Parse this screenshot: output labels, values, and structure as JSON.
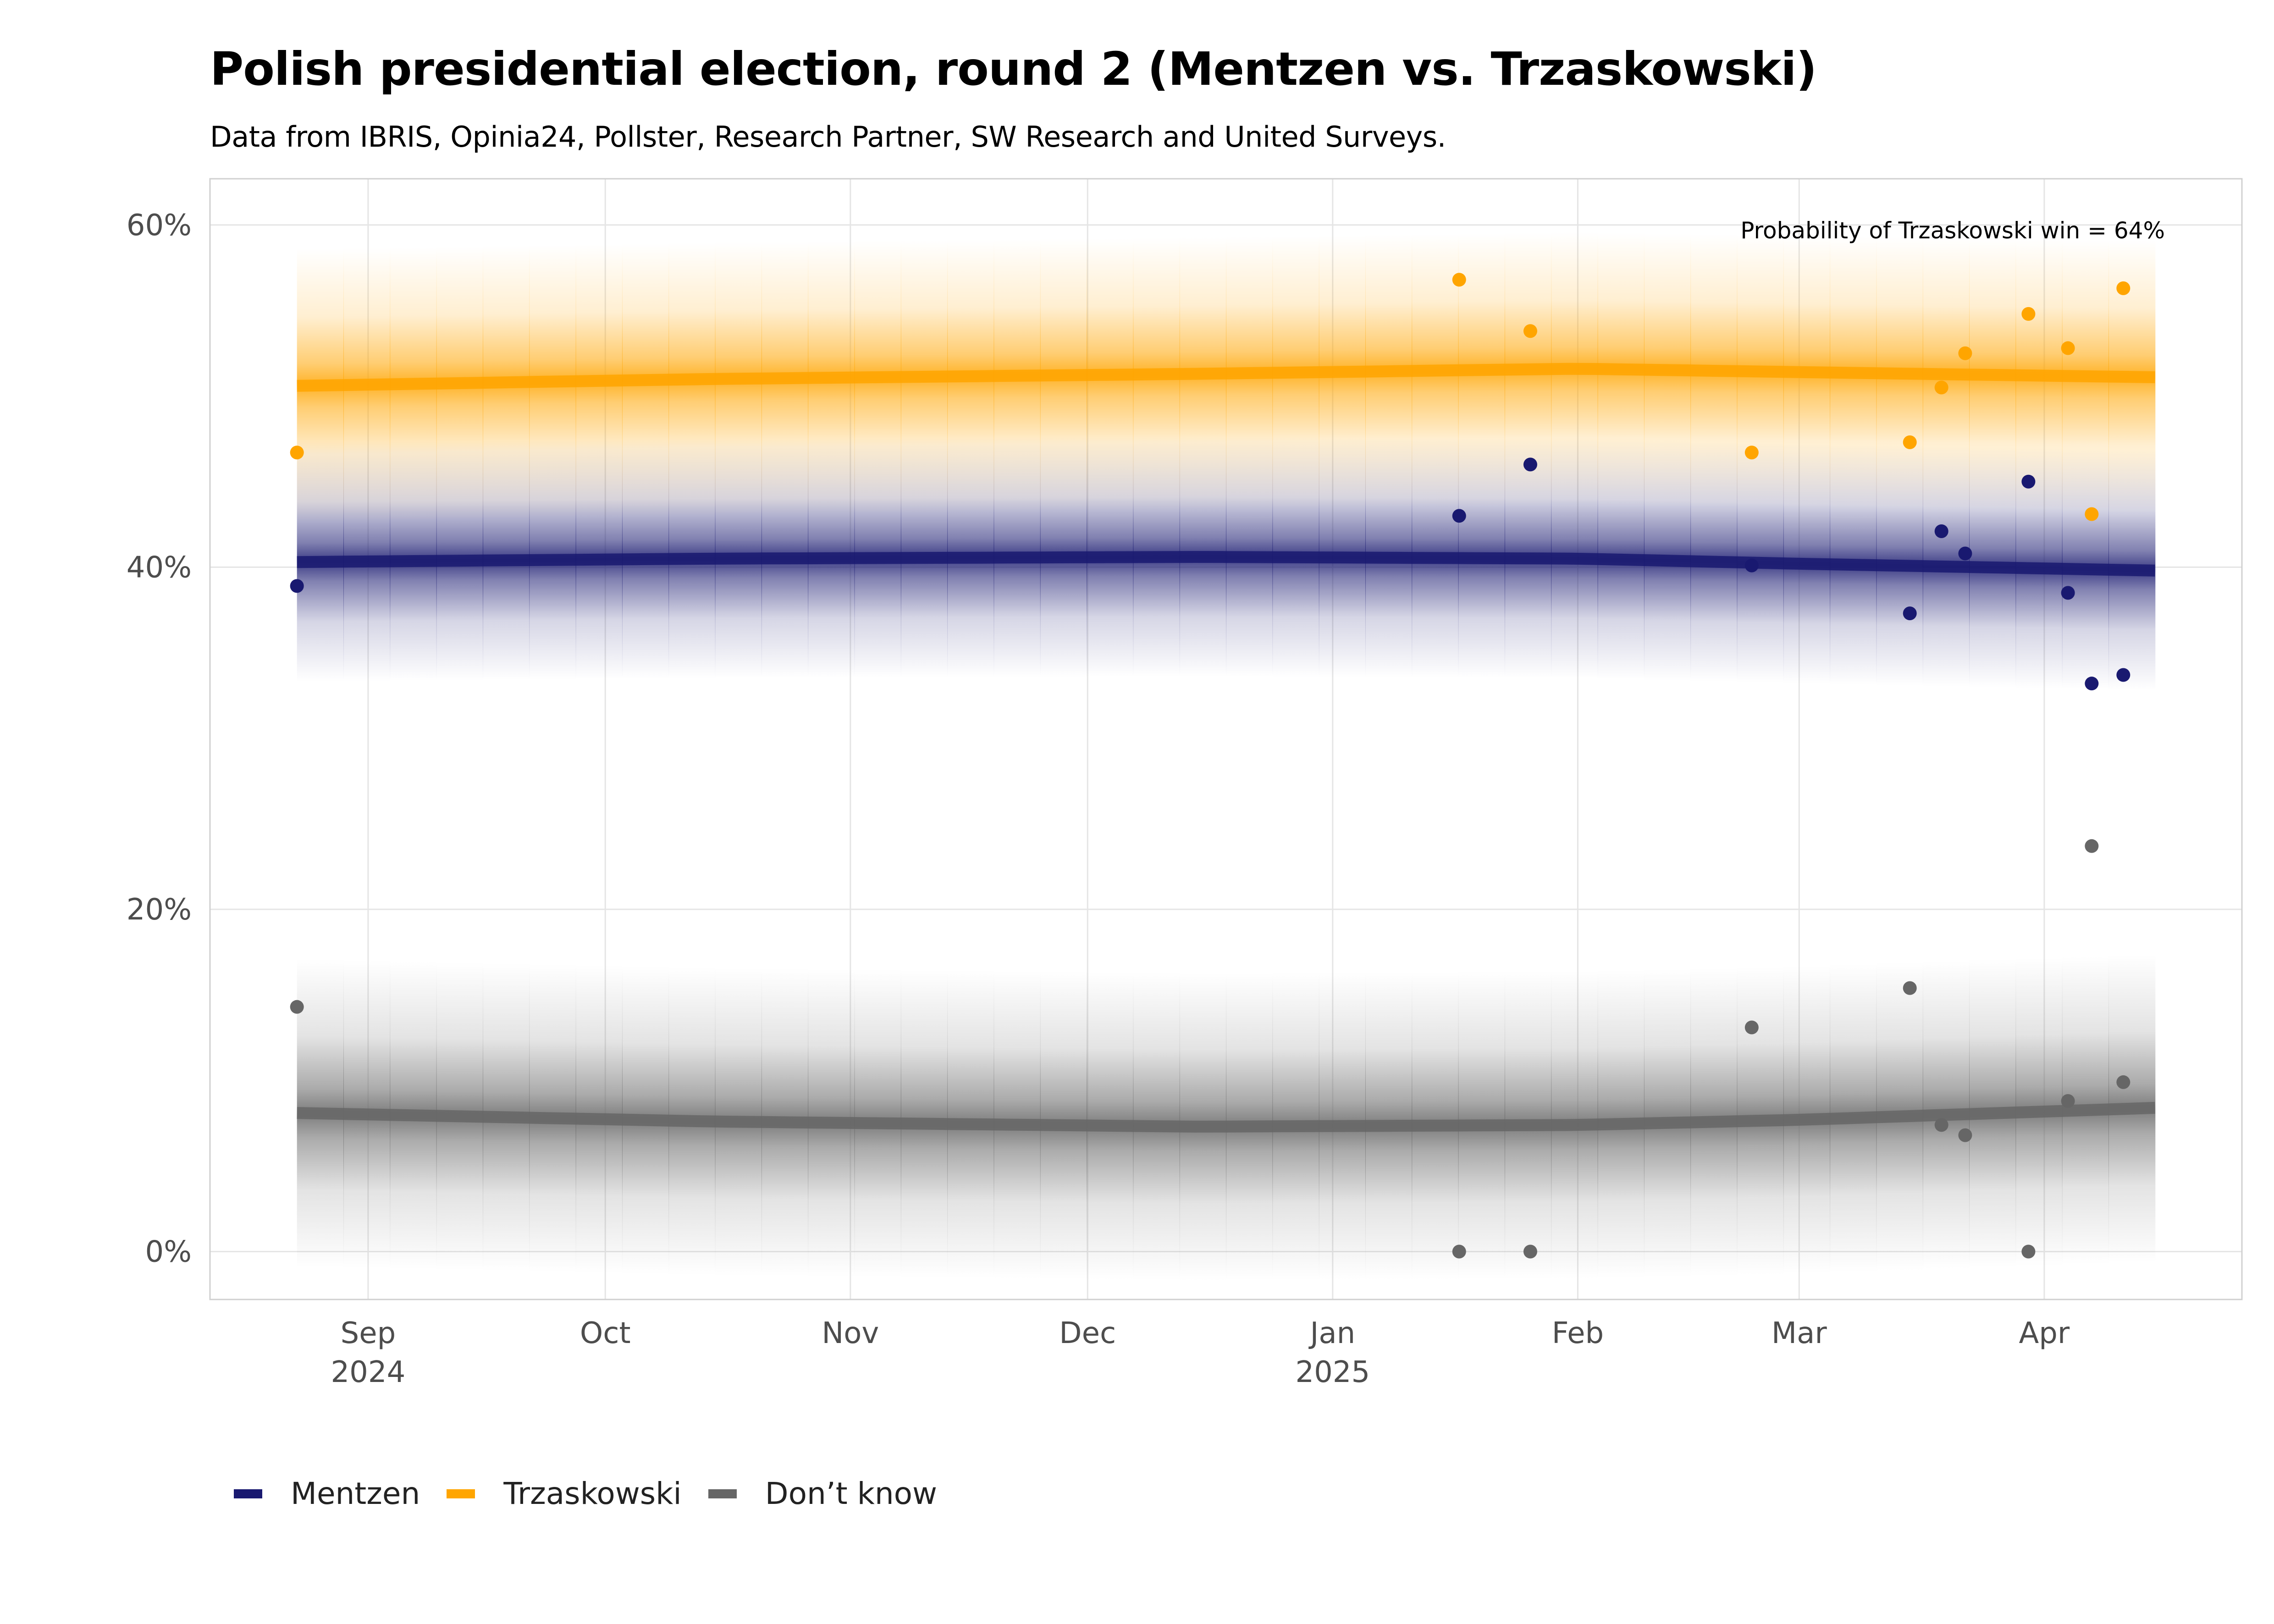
{
  "title": "Polish presidential election, round 2 (Mentzen vs. Trzaskowski)",
  "subtitle": "Data from IBRIS, Opinia24, Pollster, Research Partner, SW Research and United Surveys.",
  "annotation": "Probability of Trzaskowski win = 64%",
  "colors": {
    "Mentzen": "#191970",
    "Trzaskowski": "#FFA500",
    "Dont_know": "#666666",
    "grid": "#e5e5e5",
    "frame": "#d0d0d0",
    "axis_text": "#4d4d4d"
  },
  "chart_data": {
    "type": "scatter",
    "x_axis": {
      "range": [
        "2024-08-12",
        "2025-04-26"
      ],
      "ticks": [
        {
          "date": "2024-09-01",
          "label": "Sep",
          "label2": "2024"
        },
        {
          "date": "2024-10-01",
          "label": "Oct",
          "label2": ""
        },
        {
          "date": "2024-11-01",
          "label": "Nov",
          "label2": ""
        },
        {
          "date": "2024-12-01",
          "label": "Dec",
          "label2": ""
        },
        {
          "date": "2025-01-01",
          "label": "Jan",
          "label2": "2025"
        },
        {
          "date": "2025-02-01",
          "label": "Feb",
          "label2": ""
        },
        {
          "date": "2025-03-01",
          "label": "Mar",
          "label2": ""
        },
        {
          "date": "2025-04-01",
          "label": "Apr",
          "label2": ""
        }
      ]
    },
    "y_axis": {
      "range": [
        -2.8,
        62.7
      ],
      "ticks": [
        0,
        20,
        40,
        60
      ],
      "tick_labels": [
        "0%",
        "20%",
        "40%",
        "60%"
      ]
    },
    "grid": true,
    "legend_position": "bottom-left",
    "series": [
      {
        "name": "Mentzen",
        "trend": [
          [
            "2024-08-23",
            40.3
          ],
          [
            "2024-10-15",
            40.5
          ],
          [
            "2024-12-15",
            40.6
          ],
          [
            "2025-02-01",
            40.5
          ],
          [
            "2025-03-01",
            40.2
          ],
          [
            "2025-04-15",
            39.8
          ]
        ],
        "band_halfwidth": 7,
        "points": [
          [
            "2024-08-23",
            38.9
          ],
          [
            "2025-01-17",
            43.0
          ],
          [
            "2025-01-26",
            46.0
          ],
          [
            "2025-02-23",
            40.1
          ],
          [
            "2025-03-15",
            37.3
          ],
          [
            "2025-03-19",
            42.1
          ],
          [
            "2025-03-22",
            40.8
          ],
          [
            "2025-03-30",
            45.0
          ],
          [
            "2025-04-04",
            38.5
          ],
          [
            "2025-04-07",
            33.2
          ],
          [
            "2025-04-11",
            33.7
          ]
        ]
      },
      {
        "name": "Trzaskowski",
        "trend": [
          [
            "2024-08-23",
            50.6
          ],
          [
            "2024-10-15",
            51.0
          ],
          [
            "2024-12-15",
            51.3
          ],
          [
            "2025-02-01",
            51.6
          ],
          [
            "2025-03-01",
            51.4
          ],
          [
            "2025-04-15",
            51.1
          ]
        ],
        "band_halfwidth": 8,
        "points": [
          [
            "2024-08-23",
            46.7
          ],
          [
            "2025-01-17",
            56.8
          ],
          [
            "2025-01-26",
            53.8
          ],
          [
            "2025-02-23",
            46.7
          ],
          [
            "2025-03-15",
            47.3
          ],
          [
            "2025-03-19",
            50.5
          ],
          [
            "2025-03-22",
            52.5
          ],
          [
            "2025-03-30",
            54.8
          ],
          [
            "2025-04-04",
            52.8
          ],
          [
            "2025-04-07",
            43.1
          ],
          [
            "2025-04-11",
            56.3
          ]
        ]
      },
      {
        "name": "Don't know",
        "trend": [
          [
            "2024-08-23",
            8.1
          ],
          [
            "2024-10-15",
            7.6
          ],
          [
            "2024-12-15",
            7.3
          ],
          [
            "2025-02-01",
            7.4
          ],
          [
            "2025-03-01",
            7.7
          ],
          [
            "2025-04-15",
            8.4
          ]
        ],
        "band_halfwidth": 9,
        "points": [
          [
            "2024-08-23",
            14.3
          ],
          [
            "2025-01-17",
            0.0
          ],
          [
            "2025-01-26",
            0.0
          ],
          [
            "2025-02-23",
            13.1
          ],
          [
            "2025-03-15",
            15.4
          ],
          [
            "2025-03-19",
            7.4
          ],
          [
            "2025-03-22",
            6.8
          ],
          [
            "2025-03-30",
            0.0
          ],
          [
            "2025-04-04",
            8.8
          ],
          [
            "2025-04-07",
            23.7
          ],
          [
            "2025-04-11",
            9.9
          ]
        ]
      }
    ]
  },
  "legend": {
    "items": [
      "Mentzen",
      "Trzaskowski",
      "Don’t know"
    ]
  }
}
